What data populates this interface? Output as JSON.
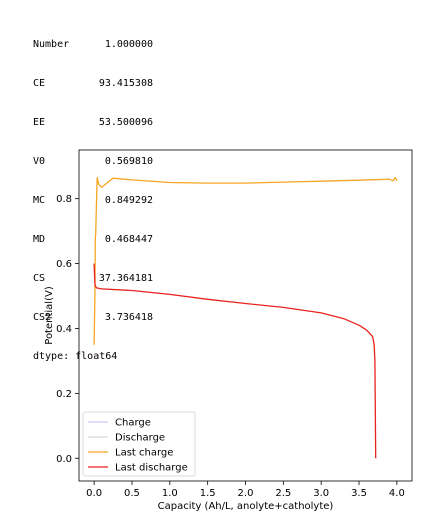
{
  "stats": {
    "rows": [
      {
        "name": "Number",
        "value": "1.000000"
      },
      {
        "name": "CE",
        "value": "93.415308"
      },
      {
        "name": "EE",
        "value": "53.500096"
      },
      {
        "name": "V0",
        "value": "0.569810"
      },
      {
        "name": "MC",
        "value": "0.849292"
      },
      {
        "name": "MD",
        "value": "0.468447"
      },
      {
        "name": "CS",
        "value": "37.364181"
      },
      {
        "name": "CS2",
        "value": "3.736418"
      }
    ],
    "dtype": "dtype: float64"
  },
  "chart_data": {
    "type": "line",
    "xlabel": "Capacity (Ah/L, anolyte+catholyte)",
    "ylabel": "Potential(V)",
    "xlim": [
      -0.2,
      4.2
    ],
    "ylim": [
      -0.07,
      0.95
    ],
    "x_ticks": [
      "0.0",
      "0.5",
      "1.0",
      "1.5",
      "2.0",
      "2.5",
      "3.0",
      "3.5",
      "4.0"
    ],
    "y_ticks": [
      "0.0",
      "0.2",
      "0.4",
      "0.6",
      "0.8"
    ],
    "legend_position": "lower-left",
    "series": [
      {
        "name": "Charge",
        "color": "#c9c9f5",
        "points": []
      },
      {
        "name": "Discharge",
        "color": "#d6d6d6",
        "points": []
      },
      {
        "name": "Last charge",
        "color": "#f5a623",
        "points": [
          [
            0.0,
            0.35
          ],
          [
            0.01,
            0.5
          ],
          [
            0.015,
            0.68
          ],
          [
            0.02,
            0.69
          ],
          [
            0.03,
            0.78
          ],
          [
            0.04,
            0.865
          ],
          [
            0.06,
            0.845
          ],
          [
            0.1,
            0.835
          ],
          [
            0.15,
            0.845
          ],
          [
            0.25,
            0.863
          ],
          [
            0.5,
            0.858
          ],
          [
            1.0,
            0.85
          ],
          [
            1.5,
            0.848
          ],
          [
            2.0,
            0.848
          ],
          [
            2.5,
            0.851
          ],
          [
            3.0,
            0.854
          ],
          [
            3.5,
            0.857
          ],
          [
            3.9,
            0.86
          ],
          [
            3.95,
            0.855
          ],
          [
            3.98,
            0.865
          ],
          [
            4.0,
            0.855
          ]
        ]
      },
      {
        "name": "Last discharge",
        "color": "#e8231f",
        "points": [
          [
            0.0,
            0.6
          ],
          [
            0.005,
            0.57
          ],
          [
            0.01,
            0.535
          ],
          [
            0.03,
            0.525
          ],
          [
            0.1,
            0.522
          ],
          [
            0.5,
            0.517
          ],
          [
            1.0,
            0.505
          ],
          [
            1.5,
            0.49
          ],
          [
            2.0,
            0.477
          ],
          [
            2.5,
            0.465
          ],
          [
            3.0,
            0.448
          ],
          [
            3.3,
            0.43
          ],
          [
            3.5,
            0.41
          ],
          [
            3.6,
            0.395
          ],
          [
            3.68,
            0.375
          ],
          [
            3.7,
            0.35
          ],
          [
            3.71,
            0.3
          ],
          [
            3.715,
            0.15
          ],
          [
            3.72,
            0.0
          ]
        ]
      }
    ]
  }
}
